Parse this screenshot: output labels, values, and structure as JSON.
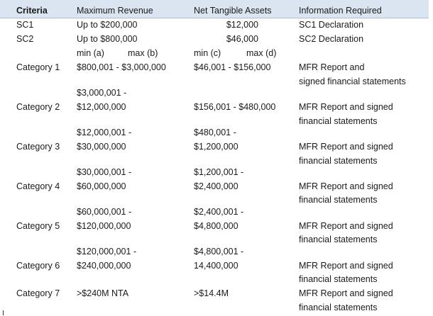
{
  "headers": {
    "criteria": "Criteria",
    "maximum_revenue": "Maximum Revenue",
    "net_tangible_assets": "Net Tangible Assets",
    "information_required": "Information Required"
  },
  "sc1": {
    "criteria": "SC1",
    "revenue": "Up to $200,000",
    "nta": "$12,000",
    "info": "SC1 Declaration"
  },
  "sc2": {
    "criteria": "SC2",
    "revenue": "Up to $800,000",
    "nta": "$46,000",
    "info": "SC2 Declaration"
  },
  "subheaders": {
    "min_a": "min (a)",
    "max_b": "max (b)",
    "min_c": "min (c)",
    "max_d": "max (d)"
  },
  "categories": [
    {
      "criteria": "Category 1",
      "revenue": [
        "$800,001 - $3,000,000"
      ],
      "nta": [
        "$46,001 - $156,000"
      ],
      "info": [
        "MFR Report and",
        "signed financial statements"
      ]
    },
    {
      "criteria": "Category 2",
      "revenue": [
        "$3,000,001 -",
        "$12,000,000"
      ],
      "nta": [
        "$156,001 - $480,000"
      ],
      "info": [
        "MFR Report and signed",
        "financial statements"
      ]
    },
    {
      "criteria": "Category 3",
      "revenue": [
        "$12,000,001 -",
        "$30,000,000"
      ],
      "nta": [
        "$480,001 -",
        "$1,200,000"
      ],
      "info": [
        "MFR Report and signed",
        "financial statements"
      ]
    },
    {
      "criteria": "Category 4",
      "revenue": [
        "$30,000,001 -",
        "$60,000,000"
      ],
      "nta": [
        "$1,200,001 -",
        "$2,400,000"
      ],
      "info": [
        "MFR Report and signed",
        "financial statements"
      ]
    },
    {
      "criteria": "Category 5",
      "revenue": [
        "$60,000,001 -",
        "$120,000,000"
      ],
      "nta": [
        "$2,400,001 -",
        "$4,800,000"
      ],
      "info": [
        "MFR Report and signed",
        "financial statements"
      ]
    },
    {
      "criteria": "Category 6",
      "revenue": [
        "$120,000,001 -",
        "$240,000,000"
      ],
      "nta": [
        "$4,800,001 -",
        "14,400,000"
      ],
      "info": [
        "MFR Report and signed",
        "financial statements"
      ]
    },
    {
      "criteria": "Category 7",
      "revenue": [
        ">$240M NTA"
      ],
      "nta": [
        ">$14.4M"
      ],
      "info": [
        "MFR Report and signed",
        "financial statements"
      ]
    }
  ]
}
